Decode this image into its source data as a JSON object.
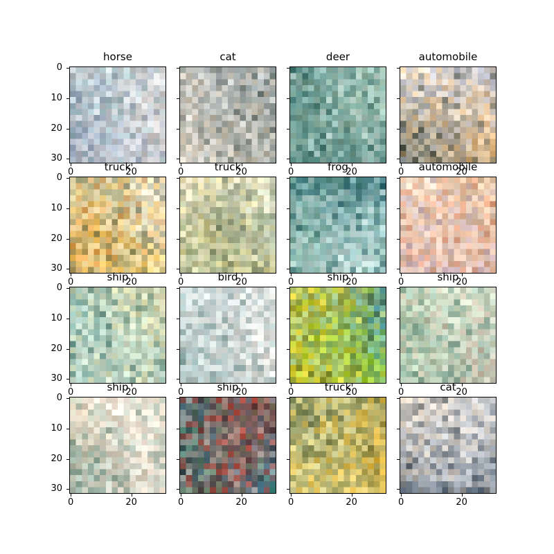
{
  "figure": {
    "panels": [
      {
        "title": "horse",
        "palette": [
          "#d9e6e6",
          "#f3ede6",
          "#9cc6c3",
          "#e7d7d0",
          "#9aa6bf",
          "#fff8f0"
        ]
      },
      {
        "title": "cat",
        "palette": [
          "#b9c6cf",
          "#e6e0d8",
          "#6f7f78",
          "#f0d9bf",
          "#5a6a6a",
          "#ffffff"
        ]
      },
      {
        "title": "deer",
        "palette": [
          "#6fa79e",
          "#4a8b88",
          "#b7e0df",
          "#f1f6f3",
          "#2d6663",
          "#9bb7a0"
        ]
      },
      {
        "title": "automobile",
        "palette": [
          "#f1d5b0",
          "#f4b56a",
          "#9aa6c8",
          "#2d3b35",
          "#fff4e6",
          "#c9c0b8"
        ]
      },
      {
        "title": "truck",
        "palette": [
          "#f2b12c",
          "#f7d27a",
          "#e8872f",
          "#2f4a3a",
          "#fff1dd",
          "#c6d7b7"
        ]
      },
      {
        "title": "truck",
        "palette": [
          "#d3d09a",
          "#f0e08a",
          "#8ca87b",
          "#566b55",
          "#fff5d8",
          "#c8d8c5"
        ]
      },
      {
        "title": "frog",
        "palette": [
          "#9fcfd6",
          "#d6efef",
          "#3f7f76",
          "#7fb3a0",
          "#1e5a6a",
          "#f3f6f5"
        ]
      },
      {
        "title": "automobile",
        "palette": [
          "#f2b07d",
          "#fbd7b6",
          "#b7a7c7",
          "#e87b4d",
          "#f6efe6",
          "#d9c3a3"
        ]
      },
      {
        "title": "ship",
        "palette": [
          "#7fb0a8",
          "#d8eedc",
          "#2e6d6e",
          "#f0e2a7",
          "#c4dedd",
          "#fffbe8"
        ]
      },
      {
        "title": "bird",
        "palette": [
          "#eef2f2",
          "#ffffff",
          "#a9c3c6",
          "#d7ddd9",
          "#6f9c9b",
          "#f4e9e2"
        ]
      },
      {
        "title": "ship",
        "palette": [
          "#3c7d74",
          "#6fb9a9",
          "#2f9bde",
          "#93d02b",
          "#e6d43a",
          "#1d3c3a"
        ]
      },
      {
        "title": "ship",
        "palette": [
          "#d6e8d0",
          "#c7d6b2",
          "#8fbfb4",
          "#f2efe1",
          "#e3b7a2",
          "#5e978a"
        ]
      },
      {
        "title": "ship",
        "palette": [
          "#dfeadf",
          "#fff4e8",
          "#97bdb1",
          "#f3d7c7",
          "#5f8f82",
          "#e6d6b8"
        ]
      },
      {
        "title": "ship",
        "palette": [
          "#2a7c7a",
          "#55d2a6",
          "#1e4d5c",
          "#c9e6d9",
          "#d64b3b",
          "#2fa2c7"
        ]
      },
      {
        "title": "truck",
        "palette": [
          "#f1b62d",
          "#5f7e5f",
          "#2d4a3c",
          "#d5d3a2",
          "#f7e48a",
          "#a8bca6"
        ]
      },
      {
        "title": "cat",
        "palette": [
          "#fff7ee",
          "#dbe0ea",
          "#7c8ea6",
          "#2c3e52",
          "#f1ddc6",
          "#b0bfcc"
        ]
      }
    ],
    "y_ticks": [
      "0",
      "10",
      "20",
      "30"
    ],
    "x_ticks": [
      "0",
      "20"
    ]
  }
}
